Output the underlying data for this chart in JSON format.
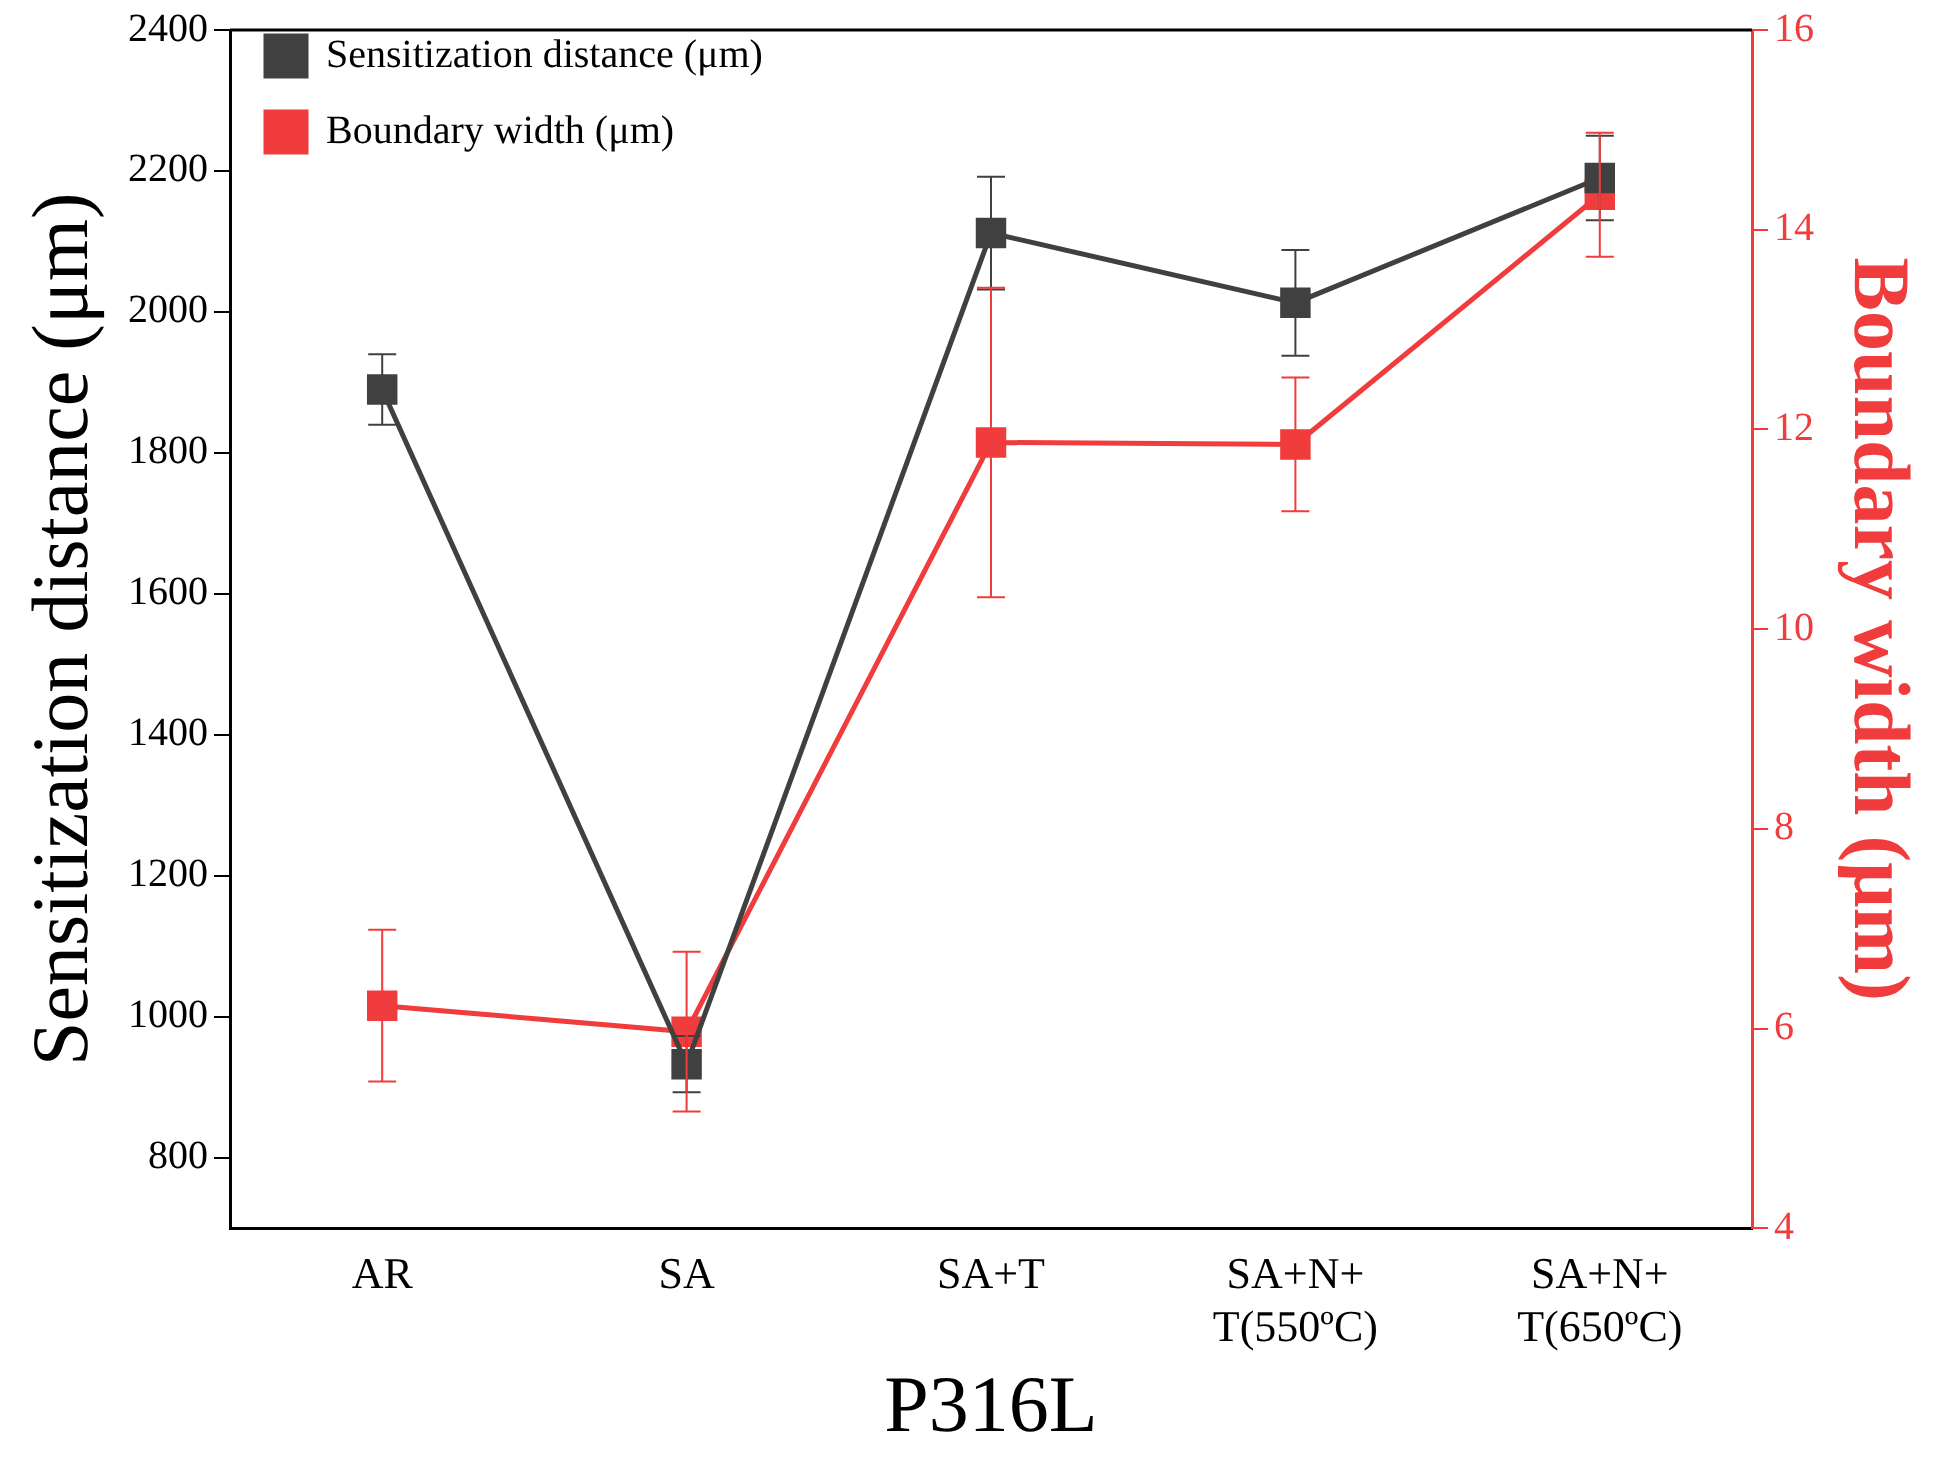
{
  "chart_data": {
    "type": "line",
    "xlabel": "P316L",
    "ylabel": "Sensitization distance (μm)",
    "y2label": "Boundary width (μm)",
    "categories": [
      "AR",
      "SA",
      "SA+T",
      "SA+N+\nT(550ºC)",
      "SA+N+\nT(650ºC)"
    ],
    "series": [
      {
        "name": "Sensitization distance (μm)",
        "color": "#404040",
        "values": [
          1890,
          933,
          2112,
          2013,
          2190
        ],
        "errors": [
          50,
          40,
          80,
          75,
          60
        ]
      },
      {
        "name": "Boundary width (μm)",
        "color": "#f03c3c",
        "axis": "y2",
        "values": [
          6.23,
          5.97,
          11.87,
          11.85,
          14.35
        ],
        "errors": [
          0.76,
          0.8,
          1.55,
          0.67,
          0.62
        ]
      }
    ],
    "ylim": [
      700,
      2400
    ],
    "yticks": [
      800,
      1000,
      1200,
      1400,
      1600,
      1800,
      2000,
      2200,
      2400
    ],
    "y2lim": [
      4,
      16
    ],
    "y2ticks": [
      4,
      6,
      8,
      10,
      12,
      14,
      16
    ],
    "grid": false,
    "legend": "top left",
    "marker": "square",
    "line_style": "solid"
  }
}
